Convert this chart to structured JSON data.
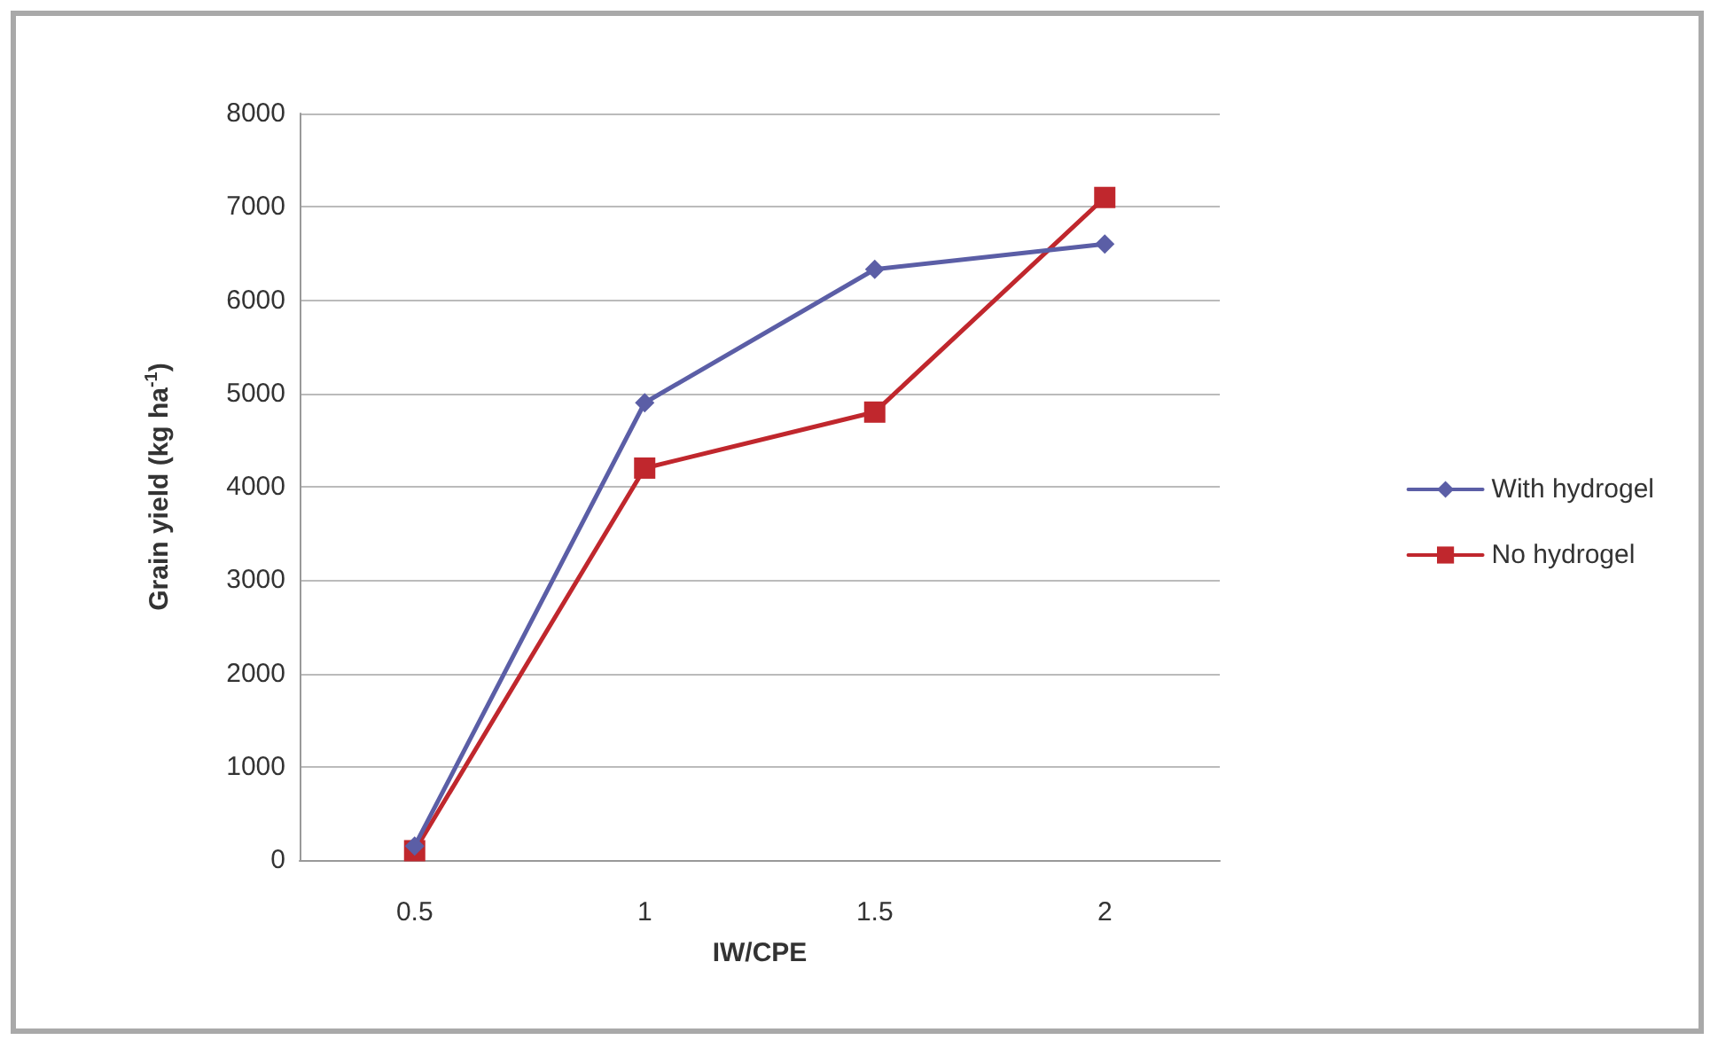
{
  "chart_data": {
    "type": "line",
    "xlabel": "IW/CPE",
    "ylabel": "Grain yield (kg ha$^{-1}$)",
    "categories": [
      "0.5",
      "1",
      "1.5",
      "2"
    ],
    "series": [
      {
        "name": "With hydrogel",
        "color": "#5b5ea6",
        "marker": "diamond",
        "values": [
          150,
          4900,
          6330,
          6600
        ]
      },
      {
        "name": "No hydrogel",
        "color": "#c0272d",
        "marker": "square",
        "values": [
          100,
          4200,
          4800,
          7100
        ]
      }
    ],
    "ylim": [
      0,
      8000
    ],
    "yticks": [
      0,
      1000,
      2000,
      3000,
      4000,
      5000,
      6000,
      7000,
      8000
    ],
    "grid": "y",
    "legend": "right",
    "line_style": "solid"
  }
}
